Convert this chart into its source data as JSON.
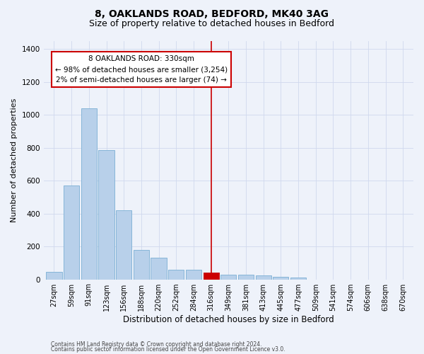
{
  "title_line1": "8, OAKLANDS ROAD, BEDFORD, MK40 3AG",
  "title_line2": "Size of property relative to detached houses in Bedford",
  "xlabel": "Distribution of detached houses by size in Bedford",
  "ylabel": "Number of detached properties",
  "footer_line1": "Contains HM Land Registry data © Crown copyright and database right 2024.",
  "footer_line2": "Contains public sector information licensed under the Open Government Licence v3.0.",
  "annotation_title": "8 OAKLANDS ROAD: 330sqm",
  "annotation_line1": "← 98% of detached houses are smaller (3,254)",
  "annotation_line2": "2% of semi-detached houses are larger (74) →",
  "bar_color": "#b8d0ea",
  "bar_edge_color": "#7aaed4",
  "marker_color": "#cc0000",
  "background_color": "#eef2fa",
  "x_labels": [
    "27sqm",
    "59sqm",
    "91sqm",
    "123sqm",
    "156sqm",
    "188sqm",
    "220sqm",
    "252sqm",
    "284sqm",
    "316sqm",
    "349sqm",
    "381sqm",
    "413sqm",
    "445sqm",
    "477sqm",
    "509sqm",
    "541sqm",
    "574sqm",
    "606sqm",
    "638sqm",
    "670sqm"
  ],
  "bar_values": [
    47,
    572,
    1040,
    785,
    420,
    180,
    130,
    60,
    58,
    43,
    30,
    27,
    22,
    17,
    12,
    0,
    0,
    0,
    0,
    0,
    0
  ],
  "marker_bar_index": 9,
  "marker_bar_value": 43,
  "ylim": [
    0,
    1450
  ],
  "yticks": [
    0,
    200,
    400,
    600,
    800,
    1000,
    1200,
    1400
  ],
  "grid_color": "#d0d8ee",
  "title_fontsize": 10,
  "subtitle_fontsize": 9,
  "ylabel_fontsize": 8,
  "xlabel_fontsize": 8.5,
  "tick_fontsize": 7,
  "annot_fontsize": 7.5,
  "footer_fontsize": 5.5
}
